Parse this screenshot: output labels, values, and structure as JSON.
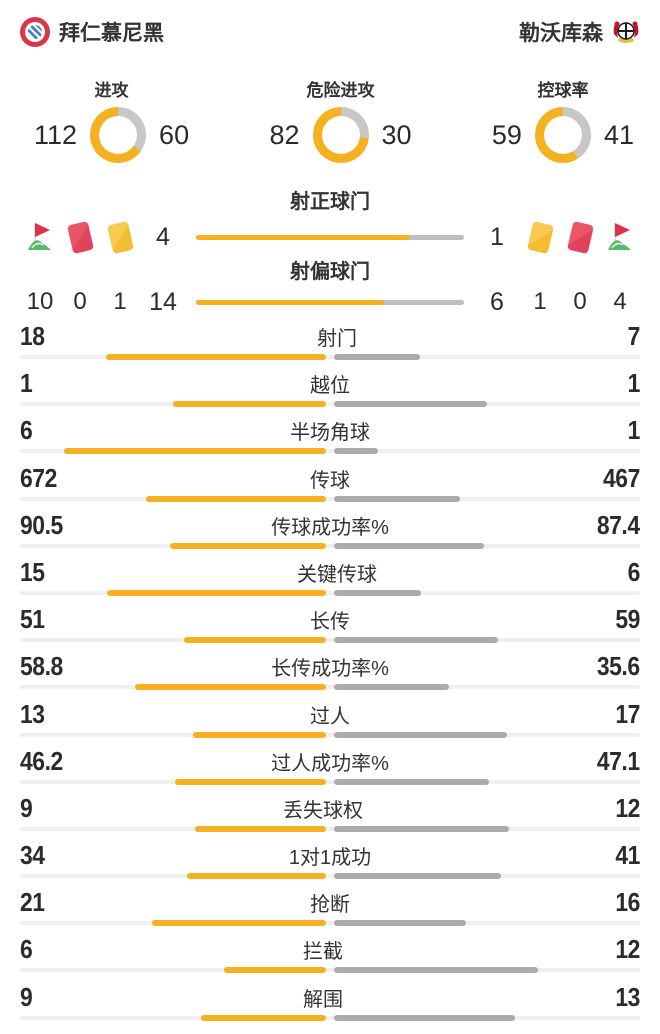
{
  "colors": {
    "yellow": "#F5B120",
    "gray_bar": "#ABABAB",
    "gray_bar_light": "#BFBFBF",
    "donut_gray": "#C7C7C7",
    "track": "#EFEFEF",
    "text_dark": "#2b2b2b",
    "card_red": "#E64A5E",
    "card_yellow": "#F3BE38",
    "flag_red": "#E0314B",
    "flag_green": "#57BC69"
  },
  "chart_data": {
    "type": "bar",
    "teams": [
      "拜仁慕尼黑",
      "勒沃库森"
    ],
    "legend_position": "none",
    "donuts": [
      {
        "label": "进攻",
        "home": 112,
        "away": 60
      },
      {
        "label": "危险进攻",
        "home": 82,
        "away": 30
      },
      {
        "label": "控球率",
        "home": 59,
        "away": 41
      }
    ],
    "discipline": {
      "home": {
        "corners": 10,
        "red_cards": 0,
        "yellow_cards": 1
      },
      "away": {
        "corners": 4,
        "red_cards": 0,
        "yellow_cards": 1
      }
    },
    "shot_bars": [
      {
        "label": "射正球门",
        "home": 4,
        "away": 1
      },
      {
        "label": "射偏球门",
        "home": 14,
        "away": 6
      }
    ],
    "stats": [
      {
        "label": "射门",
        "home": 18,
        "away": 7
      },
      {
        "label": "越位",
        "home": 1,
        "away": 1
      },
      {
        "label": "半场角球",
        "home": 6,
        "away": 1
      },
      {
        "label": "传球",
        "home": 672,
        "away": 467
      },
      {
        "label": "传球成功率%",
        "home": 90.5,
        "away": 87.4
      },
      {
        "label": "关键传球",
        "home": 15,
        "away": 6
      },
      {
        "label": "长传",
        "home": 51,
        "away": 59
      },
      {
        "label": "长传成功率%",
        "home": 58.8,
        "away": 35.6
      },
      {
        "label": "过人",
        "home": 13,
        "away": 17
      },
      {
        "label": "过人成功率%",
        "home": 46.2,
        "away": 47.1
      },
      {
        "label": "丢失球权",
        "home": 9,
        "away": 12
      },
      {
        "label": "1对1成功",
        "home": 34,
        "away": 41
      },
      {
        "label": "抢断",
        "home": 21,
        "away": 16
      },
      {
        "label": "拦截",
        "home": 6,
        "away": 12
      },
      {
        "label": "解围",
        "home": 9,
        "away": 13
      }
    ]
  }
}
